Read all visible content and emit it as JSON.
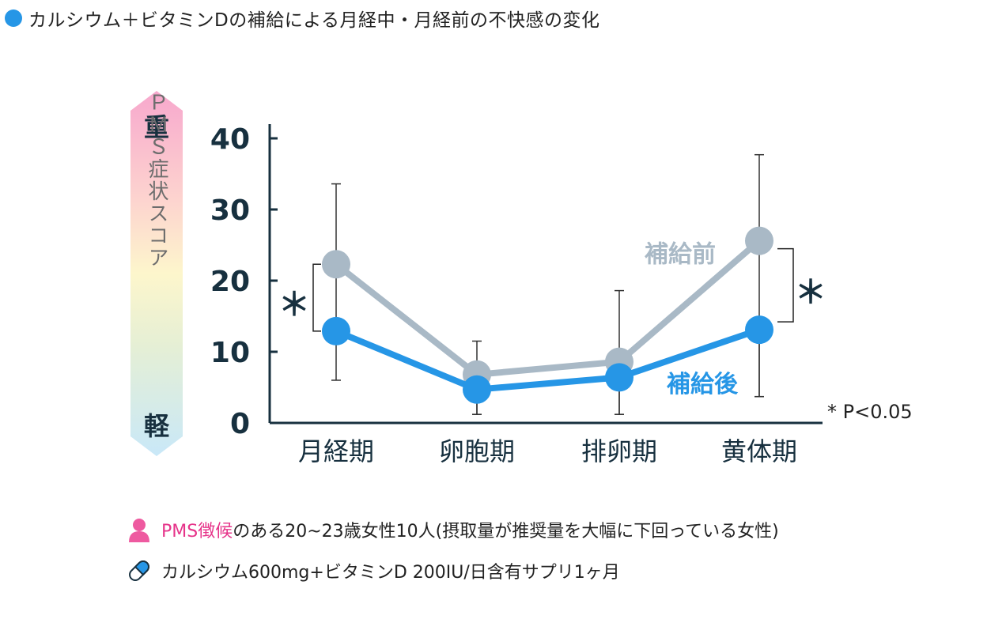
{
  "header": {
    "title": "カルシウム＋ビタミンDの補給による月経中・月経前の不快感の変化",
    "title_dot_color": "#2696e6"
  },
  "scale_bar": {
    "top_label": "重",
    "middle_label": "ＰＭＳ症状スコア",
    "bottom_label": "軽"
  },
  "chart_data": {
    "type": "line",
    "categories": [
      "月経期",
      "卵胞期",
      "排卵期",
      "黄体期"
    ],
    "ylim": [
      0,
      40
    ],
    "yticks": [
      0,
      10,
      20,
      30,
      40
    ],
    "grid": false,
    "series": [
      {
        "name": "補給前",
        "color": "#a9b9c6",
        "values": [
          22.3,
          6.8,
          8.6,
          25.6
        ],
        "err_low": [
          12.7,
          1.2,
          1.2,
          3.7
        ],
        "err_high": [
          33.6,
          11.5,
          18.6,
          37.7
        ]
      },
      {
        "name": "補給後",
        "color": "#2696e6",
        "values": [
          12.9,
          4.7,
          6.4,
          13.1
        ],
        "err_low": [
          6.0,
          1.2,
          1.2,
          3.7
        ],
        "err_high": [
          12.9,
          4.7,
          6.4,
          13.1
        ]
      }
    ],
    "significance": [
      {
        "category": "月経期",
        "side": "left",
        "label": "＊"
      },
      {
        "category": "黄体期",
        "side": "right",
        "label": "＊"
      }
    ],
    "footnote": "* P<0.05",
    "axis_color": "#17303f"
  },
  "notes": {
    "subjects_highlight": "PMS徴候",
    "subjects_text": "のある20~23歳女性10人(摂取量が推奨量を大幅に下回っている女性)",
    "supplement_text": "カルシウム600mg+ビタミンD 200IU/日含有サプリ1ヶ月",
    "person_icon_color": "#ee5aa0",
    "capsule_icon_color": "#2696e6"
  }
}
